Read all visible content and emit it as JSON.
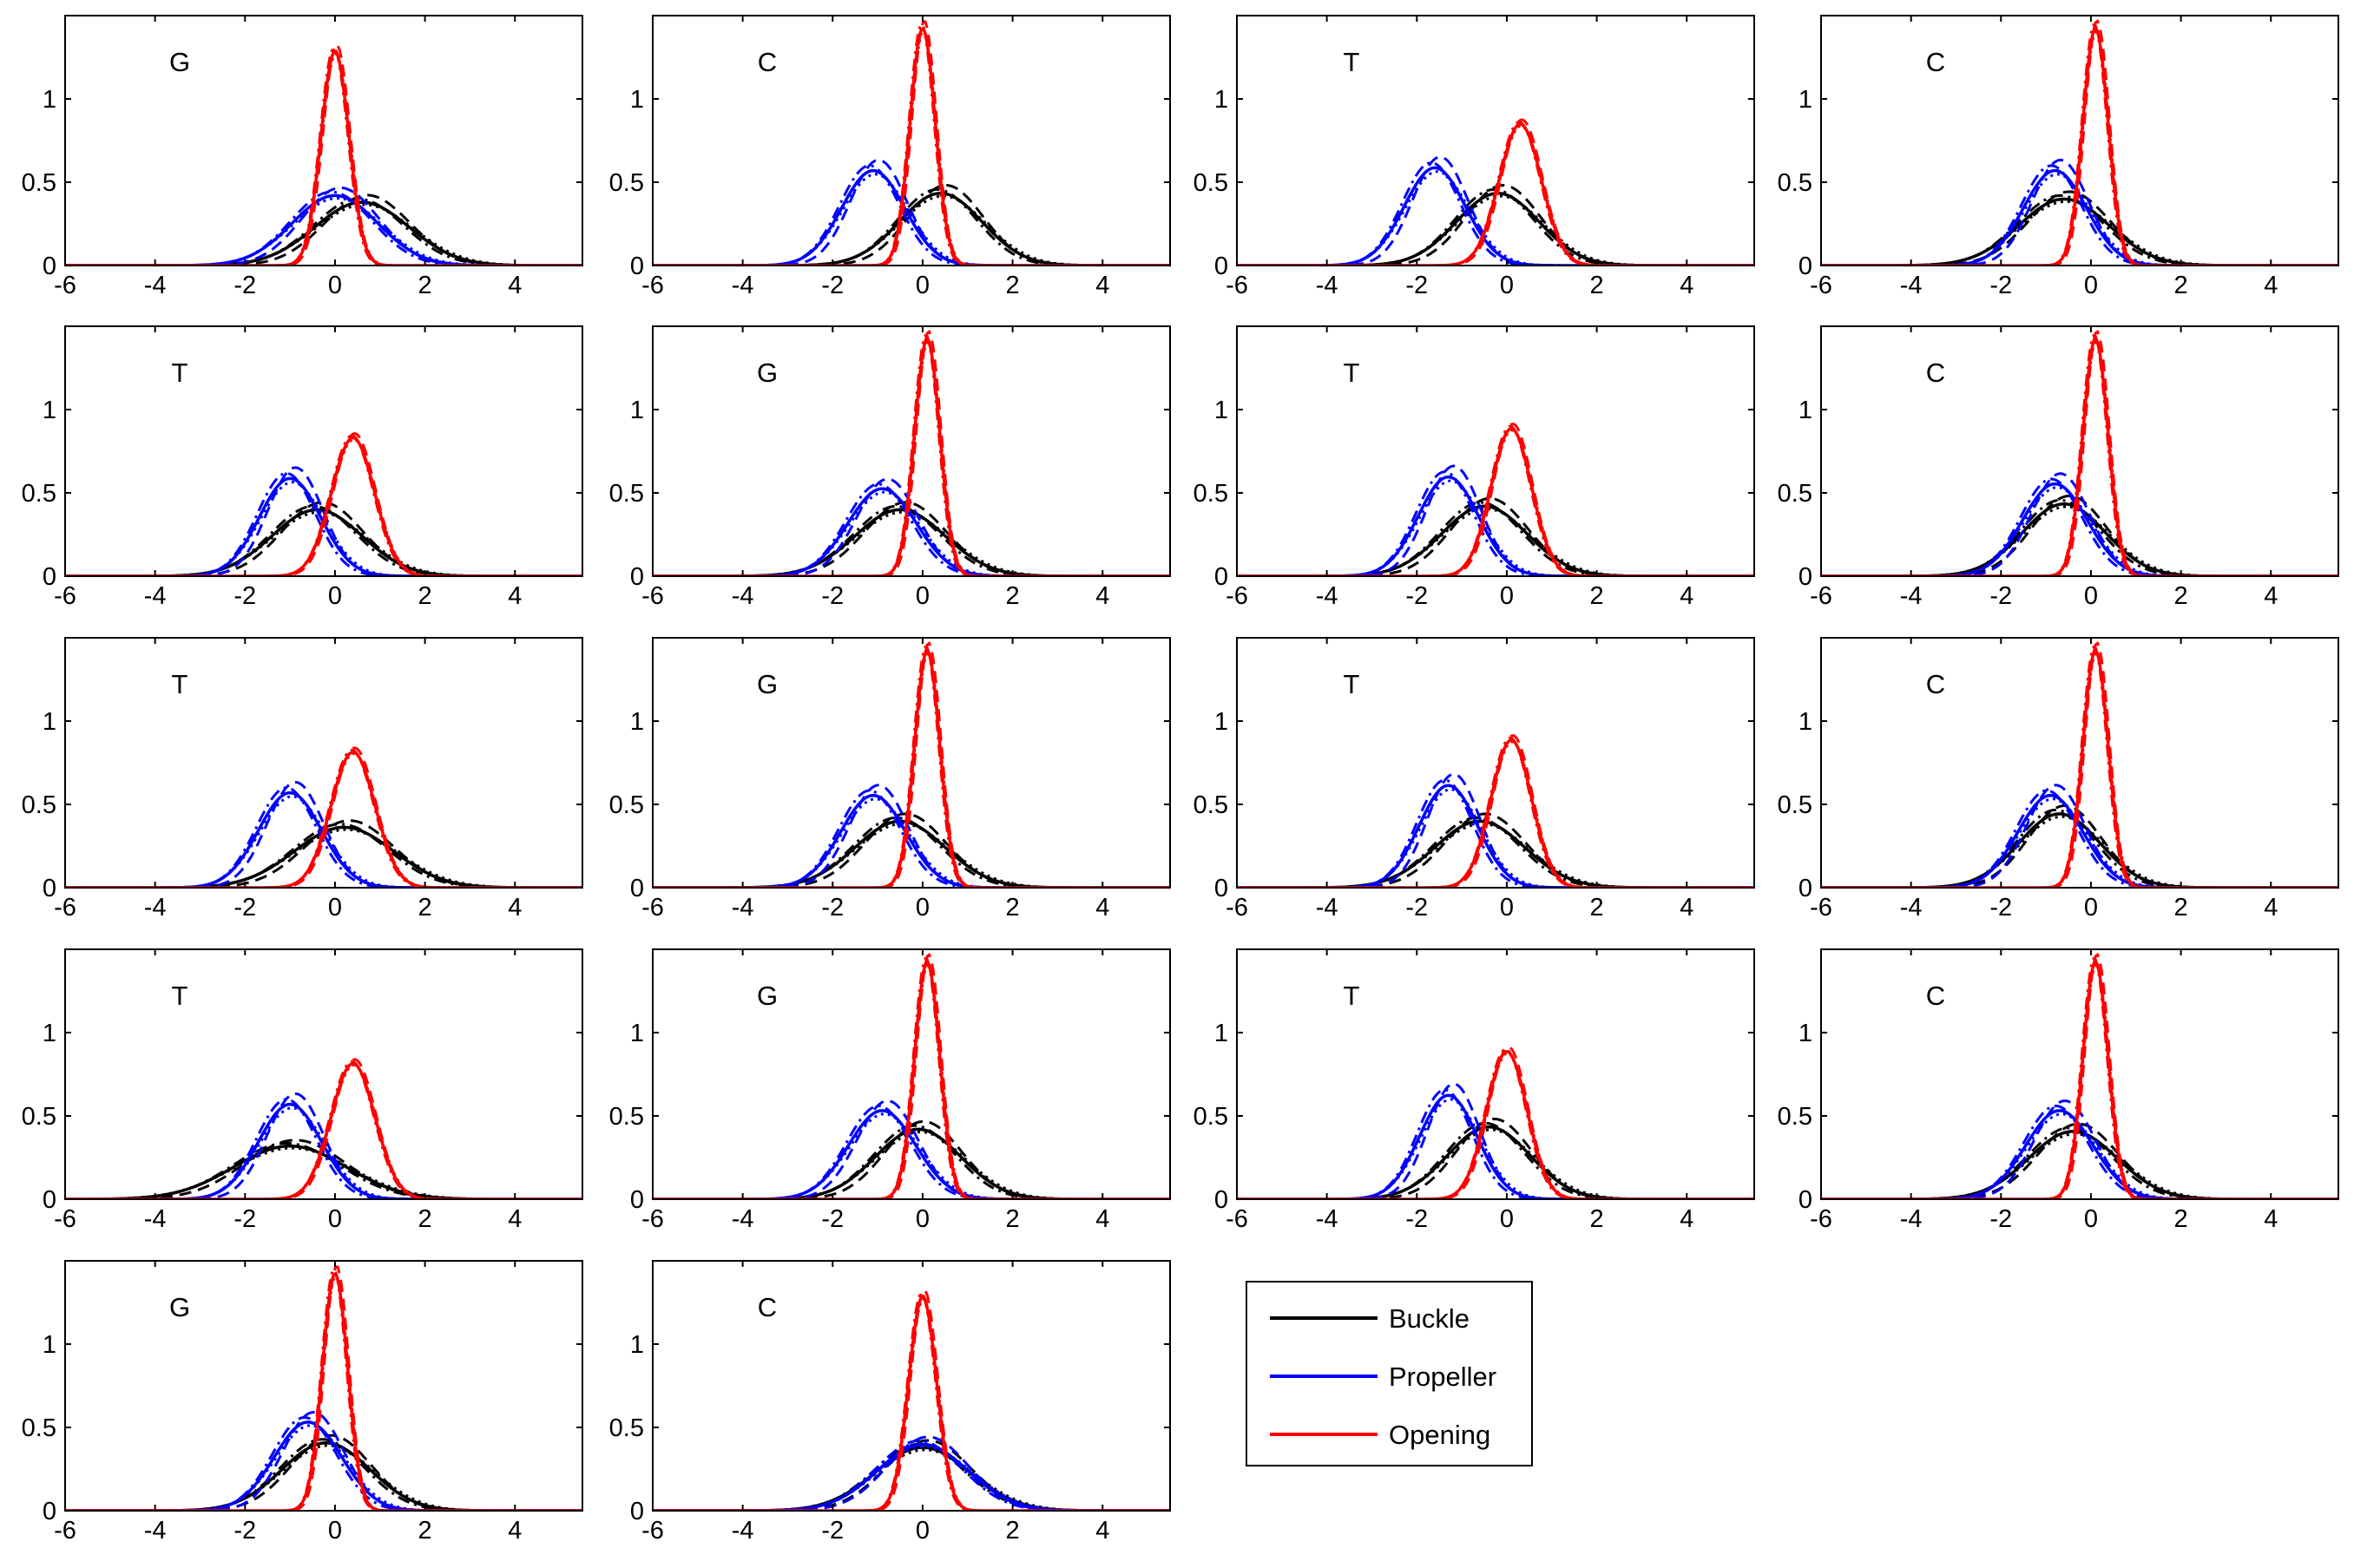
{
  "chart_data": {
    "type": "line",
    "layout": "small-multiples",
    "xlim": [
      -6,
      5.5
    ],
    "ylim": [
      0,
      1.5
    ],
    "xticks": [
      -6,
      -4,
      -2,
      0,
      2,
      4
    ],
    "xtick_labels": [
      "-6",
      "-4",
      "-2",
      "0",
      "2",
      "4"
    ],
    "yticks": [
      0,
      0.5,
      1
    ],
    "ytick_labels": [
      "0",
      "0.5",
      "1"
    ],
    "grid": false,
    "legend": {
      "placement": "below-right of panel grid",
      "entries": [
        {
          "name": "Buckle",
          "color": "#000000"
        },
        {
          "name": "Propeller",
          "color": "#0000ff"
        },
        {
          "name": "Opening",
          "color": "#ff0000"
        }
      ]
    },
    "line_styles": [
      "solid",
      "dashed",
      "dash-dot",
      "dotted"
    ],
    "panels": [
      {
        "label": "G",
        "buckle": {
          "mu": 0.6,
          "sigma": 1.05
        },
        "propeller": {
          "mu": 0.0,
          "sigma": 0.95
        },
        "opening": {
          "mu": 0.0,
          "sigma": 0.31
        }
      },
      {
        "label": "C",
        "buckle": {
          "mu": 0.4,
          "sigma": 0.92
        },
        "propeller": {
          "mu": -1.1,
          "sigma": 0.7
        },
        "opening": {
          "mu": 0.0,
          "sigma": 0.28
        }
      },
      {
        "label": "T",
        "buckle": {
          "mu": -0.2,
          "sigma": 0.92
        },
        "propeller": {
          "mu": -1.6,
          "sigma": 0.68
        },
        "opening": {
          "mu": 0.3,
          "sigma": 0.47
        }
      },
      {
        "label": "C",
        "buckle": {
          "mu": -0.6,
          "sigma": 1.0
        },
        "propeller": {
          "mu": -0.8,
          "sigma": 0.7
        },
        "opening": {
          "mu": 0.1,
          "sigma": 0.28
        }
      },
      {
        "label": "T",
        "buckle": {
          "mu": -0.4,
          "sigma": 1.0
        },
        "propeller": {
          "mu": -1.0,
          "sigma": 0.68
        },
        "opening": {
          "mu": 0.4,
          "sigma": 0.48
        }
      },
      {
        "label": "G",
        "buckle": {
          "mu": -0.5,
          "sigma": 1.0
        },
        "propeller": {
          "mu": -0.9,
          "sigma": 0.76
        },
        "opening": {
          "mu": 0.1,
          "sigma": 0.28
        }
      },
      {
        "label": "T",
        "buckle": {
          "mu": -0.5,
          "sigma": 0.95
        },
        "propeller": {
          "mu": -1.3,
          "sigma": 0.67
        },
        "opening": {
          "mu": 0.1,
          "sigma": 0.45
        }
      },
      {
        "label": "C",
        "buckle": {
          "mu": -0.6,
          "sigma": 0.92
        },
        "propeller": {
          "mu": -0.8,
          "sigma": 0.72
        },
        "opening": {
          "mu": 0.1,
          "sigma": 0.28
        }
      },
      {
        "label": "T",
        "buckle": {
          "mu": 0.2,
          "sigma": 1.1
        },
        "propeller": {
          "mu": -1.0,
          "sigma": 0.7
        },
        "opening": {
          "mu": 0.4,
          "sigma": 0.49
        }
      },
      {
        "label": "G",
        "buckle": {
          "mu": -0.5,
          "sigma": 1.0
        },
        "propeller": {
          "mu": -1.1,
          "sigma": 0.72
        },
        "opening": {
          "mu": 0.1,
          "sigma": 0.28
        }
      },
      {
        "label": "T",
        "buckle": {
          "mu": -0.6,
          "sigma": 1.0
        },
        "propeller": {
          "mu": -1.3,
          "sigma": 0.65
        },
        "opening": {
          "mu": 0.1,
          "sigma": 0.45
        }
      },
      {
        "label": "C",
        "buckle": {
          "mu": -0.7,
          "sigma": 0.9
        },
        "propeller": {
          "mu": -0.9,
          "sigma": 0.72
        },
        "opening": {
          "mu": 0.1,
          "sigma": 0.28
        }
      },
      {
        "label": "T",
        "buckle": {
          "mu": -1.0,
          "sigma": 1.25
        },
        "propeller": {
          "mu": -1.0,
          "sigma": 0.7
        },
        "opening": {
          "mu": 0.4,
          "sigma": 0.49
        }
      },
      {
        "label": "G",
        "buckle": {
          "mu": -0.1,
          "sigma": 0.95
        },
        "propeller": {
          "mu": -0.9,
          "sigma": 0.75
        },
        "opening": {
          "mu": 0.1,
          "sigma": 0.28
        }
      },
      {
        "label": "T",
        "buckle": {
          "mu": -0.4,
          "sigma": 0.92
        },
        "propeller": {
          "mu": -1.3,
          "sigma": 0.64
        },
        "opening": {
          "mu": 0.0,
          "sigma": 0.45
        }
      },
      {
        "label": "C",
        "buckle": {
          "mu": -0.4,
          "sigma": 0.98
        },
        "propeller": {
          "mu": -0.7,
          "sigma": 0.75
        },
        "opening": {
          "mu": 0.1,
          "sigma": 0.28
        }
      },
      {
        "label": "G",
        "buckle": {
          "mu": -0.2,
          "sigma": 0.98
        },
        "propeller": {
          "mu": -0.6,
          "sigma": 0.75
        },
        "opening": {
          "mu": 0.0,
          "sigma": 0.28
        }
      },
      {
        "label": "C",
        "buckle": {
          "mu": 0.0,
          "sigma": 1.05
        },
        "propeller": {
          "mu": 0.0,
          "sigma": 1.0
        },
        "opening": {
          "mu": 0.0,
          "sigma": 0.31
        }
      }
    ]
  }
}
